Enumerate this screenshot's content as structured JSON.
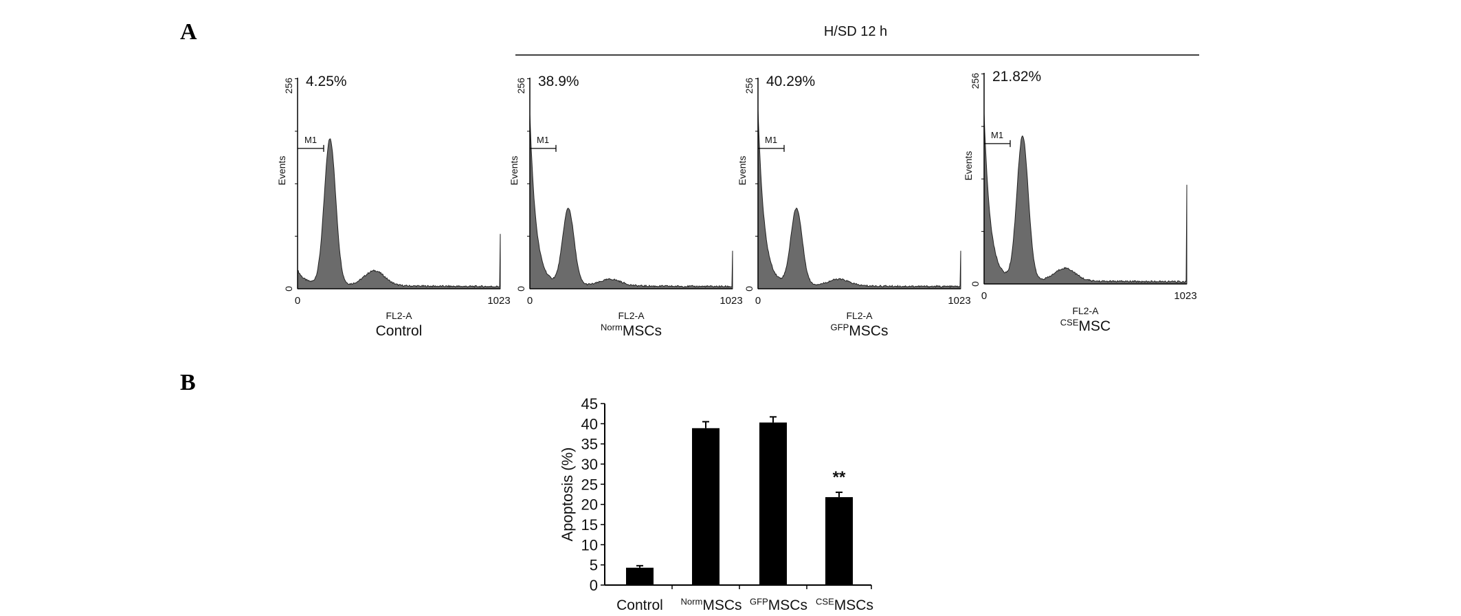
{
  "panel_labels": {
    "a": "A",
    "b": "B"
  },
  "header": {
    "condition": "H/SD 12 h"
  },
  "chart_data": [
    {
      "type": "histogram",
      "panel": "A",
      "ylabel": "Events",
      "xlabel": "FL2-A",
      "x_ticks": [
        "0",
        "1023"
      ],
      "y_ticks": [
        "0",
        "256"
      ],
      "xlim": [
        0,
        1023
      ],
      "ylim": [
        0,
        256
      ],
      "marker_label": "M1",
      "fill_color": "#6b6b6b",
      "histograms": [
        {
          "name": "Control",
          "prefix": "",
          "base": "Control",
          "percent": "4.25%"
        },
        {
          "name": "NormMSCs",
          "prefix": "Norm",
          "base": "MSCs",
          "percent": "38.9%"
        },
        {
          "name": "GFPMSCs",
          "prefix": "GFP",
          "base": "MSCs",
          "percent": "40.29%"
        },
        {
          "name": "CSEMSC",
          "prefix": "CSE",
          "base": "MSC",
          "percent": "21.82%"
        }
      ]
    },
    {
      "type": "bar",
      "panel": "B",
      "ylabel": "Apoptosis (%)",
      "xlabel": "",
      "ylim": [
        0,
        45
      ],
      "y_ticks": [
        0,
        5,
        10,
        15,
        20,
        25,
        30,
        35,
        40,
        45
      ],
      "categories": [
        {
          "prefix": "",
          "base": "Control"
        },
        {
          "prefix": "Norm",
          "base": "MSCs"
        },
        {
          "prefix": "GFP",
          "base": "MSCs"
        },
        {
          "prefix": "CSE",
          "base": "MSCs"
        }
      ],
      "values": [
        4.3,
        38.9,
        40.3,
        21.8
      ],
      "errors": [
        0.5,
        1.6,
        1.4,
        1.2
      ],
      "annotations": [
        "",
        "",
        "",
        "**"
      ],
      "bar_color": "#000000",
      "grid": false
    }
  ]
}
